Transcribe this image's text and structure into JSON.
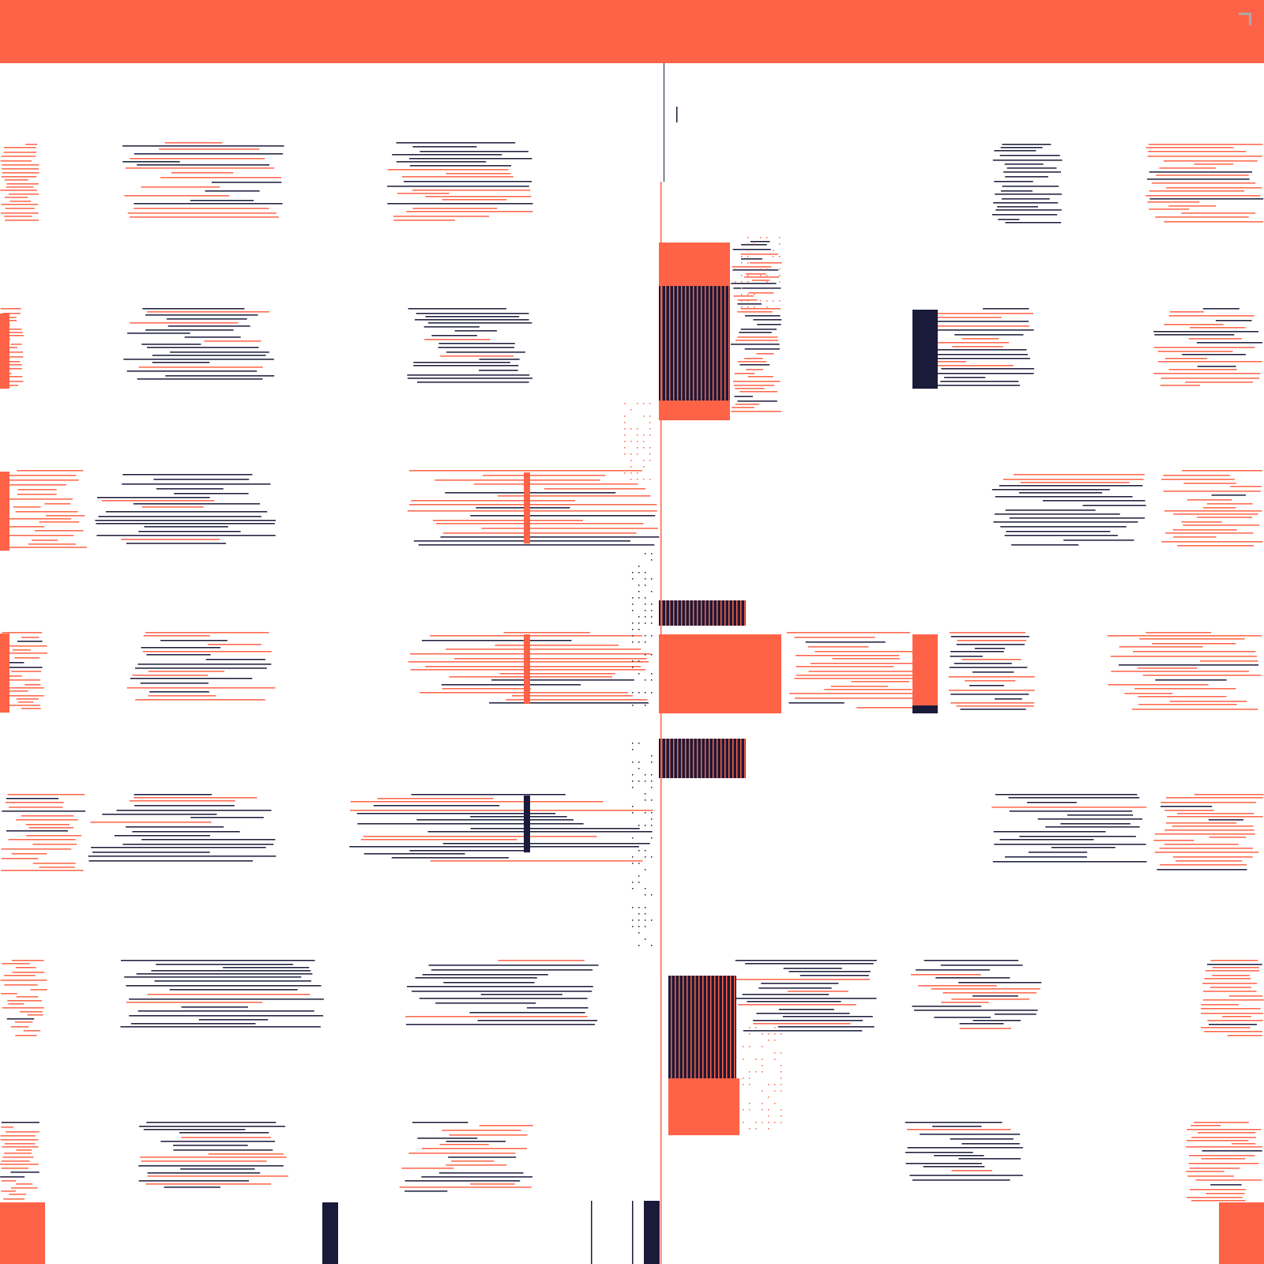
{
  "colors": {
    "accent": "#FF6347",
    "dark": "#1A1A3A",
    "background": "#FFFFFF",
    "icon": "#A9A9A9"
  },
  "header": {
    "corner_icon": "corner-bracket-icon"
  }
}
